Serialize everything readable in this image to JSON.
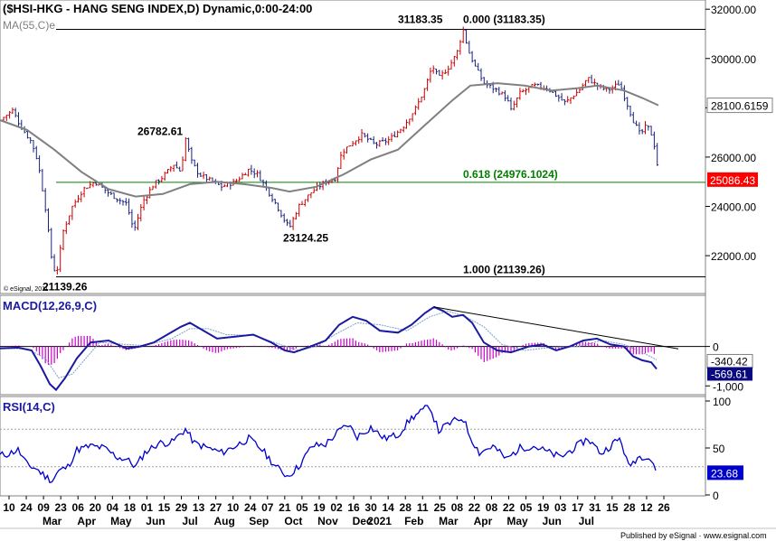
{
  "header": {
    "main_title": "($HSI-HKG - HANG SENG INDEX,D) Dynamic,0:00-24:00",
    "ma_label": "MA(55,C)",
    "ma_suffix": "e",
    "macd_label": "MACD(12,26,9,C)",
    "rsi_label": "RSI(14,C)",
    "watermark": "© eSignal, 2011",
    "footer": "Published by eSignal · www.esignal.com"
  },
  "colors": {
    "up_bar": "#cc0000",
    "down_bar": "#1a237e",
    "ma_line": "#808080",
    "fib_line": "#008000",
    "price_badge": "#ff0000",
    "ma_badge": "#ffffff",
    "macd_line": "#1a1aa0",
    "signal_line": "#7aa0c8",
    "histogram": "#cc00cc",
    "rsi_line": "#0000cc",
    "rsi_badge": "#0000cc"
  },
  "chart_data": [
    {
      "type": "candlestick",
      "title": "($HSI-HKG - HANG SENG INDEX,D) Dynamic,0:00-24:00",
      "x_axis": {
        "day_ticks": [
          "10",
          "24",
          "09",
          "23",
          "06",
          "20",
          "04",
          "18",
          "01",
          "15",
          "29",
          "13",
          "27",
          "10",
          "24",
          "07",
          "21",
          "05",
          "19",
          "02",
          "16",
          "30",
          "14",
          "28",
          "11",
          "25",
          "08",
          "22",
          "08",
          "22",
          "05",
          "19",
          "03",
          "17",
          "31",
          "15",
          "28",
          "12",
          "26"
        ],
        "month_labels": [
          "Mar",
          "Apr",
          "May",
          "Jun",
          "Jul",
          "Aug",
          "Sep",
          "Oct",
          "Nov",
          "Dec",
          "2021",
          "Feb",
          "Mar",
          "Apr",
          "May",
          "Jun",
          "Jul"
        ]
      },
      "y_axis": {
        "ticks": [
          "32000.00",
          "30000.00",
          "28000.00",
          "26000.00",
          "24000.00",
          "22000.00"
        ],
        "ylim": [
          20500,
          32300
        ]
      },
      "price_path": [
        [
          0,
          27500
        ],
        [
          14,
          27900
        ],
        [
          22,
          27300
        ],
        [
          35,
          26600
        ],
        [
          42,
          25800
        ],
        [
          50,
          24000
        ],
        [
          57,
          21900
        ],
        [
          62,
          21139
        ],
        [
          70,
          23000
        ],
        [
          80,
          24000
        ],
        [
          92,
          24700
        ],
        [
          105,
          25000
        ],
        [
          118,
          24600
        ],
        [
          130,
          24300
        ],
        [
          140,
          24100
        ],
        [
          148,
          23000
        ],
        [
          158,
          24200
        ],
        [
          170,
          24900
        ],
        [
          180,
          25200
        ],
        [
          192,
          25700
        ],
        [
          200,
          25400
        ],
        [
          205,
          26782
        ],
        [
          212,
          25800
        ],
        [
          220,
          25300
        ],
        [
          230,
          25100
        ],
        [
          245,
          24800
        ],
        [
          260,
          25000
        ],
        [
          275,
          25500
        ],
        [
          285,
          25300
        ],
        [
          295,
          24700
        ],
        [
          305,
          24100
        ],
        [
          315,
          23400
        ],
        [
          320,
          23124
        ],
        [
          330,
          24000
        ],
        [
          345,
          24600
        ],
        [
          360,
          25000
        ],
        [
          370,
          25100
        ],
        [
          378,
          26200
        ],
        [
          390,
          26600
        ],
        [
          400,
          26900
        ],
        [
          415,
          26500
        ],
        [
          430,
          26700
        ],
        [
          445,
          27200
        ],
        [
          460,
          28000
        ],
        [
          470,
          28800
        ],
        [
          478,
          29700
        ],
        [
          485,
          29200
        ],
        [
          495,
          29600
        ],
        [
          505,
          30200
        ],
        [
          512,
          31183
        ],
        [
          518,
          30300
        ],
        [
          525,
          29700
        ],
        [
          535,
          29000
        ],
        [
          550,
          28700
        ],
        [
          560,
          28400
        ],
        [
          565,
          27900
        ],
        [
          575,
          28600
        ],
        [
          590,
          28900
        ],
        [
          605,
          28800
        ],
        [
          615,
          28500
        ],
        [
          625,
          28200
        ],
        [
          640,
          28700
        ],
        [
          650,
          29200
        ],
        [
          660,
          28900
        ],
        [
          672,
          28700
        ],
        [
          685,
          29000
        ],
        [
          692,
          28300
        ],
        [
          700,
          27500
        ],
        [
          708,
          26900
        ],
        [
          715,
          27300
        ],
        [
          722,
          26800
        ],
        [
          726,
          25900
        ],
        [
          729,
          25086
        ]
      ],
      "ma_path": [
        [
          0,
          27500
        ],
        [
          30,
          27100
        ],
        [
          60,
          26300
        ],
        [
          90,
          25400
        ],
        [
          120,
          24700
        ],
        [
          150,
          24400
        ],
        [
          180,
          24500
        ],
        [
          210,
          24900
        ],
        [
          240,
          25000
        ],
        [
          270,
          24900
        ],
        [
          300,
          24750
        ],
        [
          320,
          24600
        ],
        [
          350,
          24800
        ],
        [
          380,
          25300
        ],
        [
          410,
          25900
        ],
        [
          440,
          26300
        ],
        [
          470,
          27300
        ],
        [
          500,
          28300
        ],
        [
          520,
          28900
        ],
        [
          550,
          29000
        ],
        [
          580,
          28900
        ],
        [
          610,
          28700
        ],
        [
          640,
          28800
        ],
        [
          660,
          28900
        ],
        [
          690,
          28700
        ],
        [
          710,
          28400
        ],
        [
          728,
          28100
        ]
      ],
      "annotations": [
        {
          "text": "31183.35",
          "value": 31183.35
        },
        {
          "text": "0.000 (31183.35)",
          "value": 31183.35
        },
        {
          "text": "26782.61",
          "value": 26782.61
        },
        {
          "text": "0.618 (24976.1024)",
          "value": 24976.1024
        },
        {
          "text": "23124.25",
          "value": 23124.25
        },
        {
          "text": "1.000 (21139.26)",
          "value": 21139.26
        },
        {
          "text": "21139.26",
          "value": 21139.26
        }
      ],
      "fib_levels": [
        {
          "ratio": "0.000",
          "value": 31183.35
        },
        {
          "ratio": "0.618",
          "value": 24976.1024
        },
        {
          "ratio": "1.000",
          "value": 21139.26
        }
      ],
      "ma_badge": {
        "text": "28100.6159",
        "value": 28100.6159
      },
      "price_badge": {
        "text": "25086.43",
        "value": 25086.43
      }
    },
    {
      "type": "line",
      "title": "MACD(12,26,9,C)",
      "y_axis": {
        "ticks": [
          "0",
          "-1,000"
        ],
        "ylim": [
          -1200,
          1250
        ]
      },
      "macd_path": [
        [
          0,
          -50
        ],
        [
          20,
          -30
        ],
        [
          35,
          -100
        ],
        [
          45,
          -500
        ],
        [
          55,
          -950
        ],
        [
          62,
          -1100
        ],
        [
          72,
          -800
        ],
        [
          85,
          -300
        ],
        [
          100,
          100
        ],
        [
          120,
          150
        ],
        [
          140,
          -50
        ],
        [
          155,
          0
        ],
        [
          170,
          100
        ],
        [
          185,
          300
        ],
        [
          200,
          500
        ],
        [
          210,
          600
        ],
        [
          225,
          400
        ],
        [
          240,
          200
        ],
        [
          260,
          250
        ],
        [
          280,
          300
        ],
        [
          300,
          100
        ],
        [
          315,
          -100
        ],
        [
          325,
          -150
        ],
        [
          340,
          -30
        ],
        [
          360,
          150
        ],
        [
          375,
          550
        ],
        [
          390,
          750
        ],
        [
          405,
          650
        ],
        [
          420,
          400
        ],
        [
          440,
          350
        ],
        [
          455,
          550
        ],
        [
          470,
          850
        ],
        [
          480,
          1000
        ],
        [
          490,
          900
        ],
        [
          500,
          750
        ],
        [
          512,
          800
        ],
        [
          522,
          600
        ],
        [
          535,
          100
        ],
        [
          550,
          -100
        ],
        [
          565,
          -150
        ],
        [
          585,
          0
        ],
        [
          600,
          50
        ],
        [
          615,
          -100
        ],
        [
          630,
          0
        ],
        [
          645,
          150
        ],
        [
          660,
          200
        ],
        [
          675,
          50
        ],
        [
          690,
          0
        ],
        [
          700,
          -250
        ],
        [
          710,
          -350
        ],
        [
          720,
          -400
        ],
        [
          726,
          -570
        ]
      ],
      "signal_path": [
        [
          0,
          -50
        ],
        [
          30,
          -60
        ],
        [
          50,
          -300
        ],
        [
          65,
          -800
        ],
        [
          80,
          -700
        ],
        [
          95,
          -300
        ],
        [
          110,
          100
        ],
        [
          140,
          50
        ],
        [
          160,
          20
        ],
        [
          190,
          200
        ],
        [
          210,
          450
        ],
        [
          230,
          450
        ],
        [
          250,
          300
        ],
        [
          280,
          280
        ],
        [
          310,
          50
        ],
        [
          330,
          -100
        ],
        [
          350,
          0
        ],
        [
          370,
          300
        ],
        [
          395,
          600
        ],
        [
          420,
          550
        ],
        [
          450,
          400
        ],
        [
          475,
          750
        ],
        [
          495,
          900
        ],
        [
          515,
          750
        ],
        [
          535,
          500
        ],
        [
          555,
          50
        ],
        [
          580,
          -100
        ],
        [
          610,
          -20
        ],
        [
          640,
          0
        ],
        [
          665,
          150
        ],
        [
          690,
          50
        ],
        [
          710,
          -150
        ],
        [
          726,
          -340
        ]
      ],
      "trendline": [
        [
          480,
          1000
        ],
        [
          750,
          -60
        ]
      ],
      "badges": [
        {
          "text": "-340.42",
          "value": -340.42
        },
        {
          "text": "-569.61",
          "value": -569.61
        }
      ]
    },
    {
      "type": "line",
      "title": "RSI(14,C)",
      "y_axis": {
        "ticks": [
          "100",
          "50",
          "0"
        ],
        "ylim": [
          0,
          100
        ]
      },
      "rsi_path": [
        [
          0,
          42
        ],
        [
          10,
          44
        ],
        [
          20,
          48
        ],
        [
          30,
          32
        ],
        [
          40,
          28
        ],
        [
          50,
          20
        ],
        [
          58,
          15
        ],
        [
          64,
          25
        ],
        [
          75,
          30
        ],
        [
          85,
          48
        ],
        [
          100,
          52
        ],
        [
          115,
          50
        ],
        [
          130,
          40
        ],
        [
          140,
          38
        ],
        [
          150,
          30
        ],
        [
          160,
          45
        ],
        [
          175,
          55
        ],
        [
          190,
          56
        ],
        [
          205,
          70
        ],
        [
          215,
          55
        ],
        [
          230,
          50
        ],
        [
          245,
          45
        ],
        [
          260,
          52
        ],
        [
          275,
          60
        ],
        [
          290,
          48
        ],
        [
          305,
          30
        ],
        [
          318,
          20
        ],
        [
          330,
          30
        ],
        [
          345,
          52
        ],
        [
          360,
          54
        ],
        [
          375,
          68
        ],
        [
          385,
          75
        ],
        [
          395,
          62
        ],
        [
          410,
          72
        ],
        [
          425,
          60
        ],
        [
          440,
          64
        ],
        [
          455,
          82
        ],
        [
          465,
          88
        ],
        [
          475,
          95
        ],
        [
          485,
          68
        ],
        [
          495,
          75
        ],
        [
          505,
          80
        ],
        [
          512,
          82
        ],
        [
          520,
          62
        ],
        [
          530,
          45
        ],
        [
          545,
          52
        ],
        [
          560,
          38
        ],
        [
          575,
          50
        ],
        [
          590,
          52
        ],
        [
          605,
          46
        ],
        [
          620,
          40
        ],
        [
          635,
          50
        ],
        [
          650,
          60
        ],
        [
          665,
          44
        ],
        [
          678,
          55
        ],
        [
          686,
          60
        ],
        [
          695,
          30
        ],
        [
          705,
          40
        ],
        [
          715,
          42
        ],
        [
          722,
          35
        ],
        [
          726,
          24
        ]
      ],
      "badge": {
        "text": "23.68",
        "value": 23.68
      }
    }
  ]
}
